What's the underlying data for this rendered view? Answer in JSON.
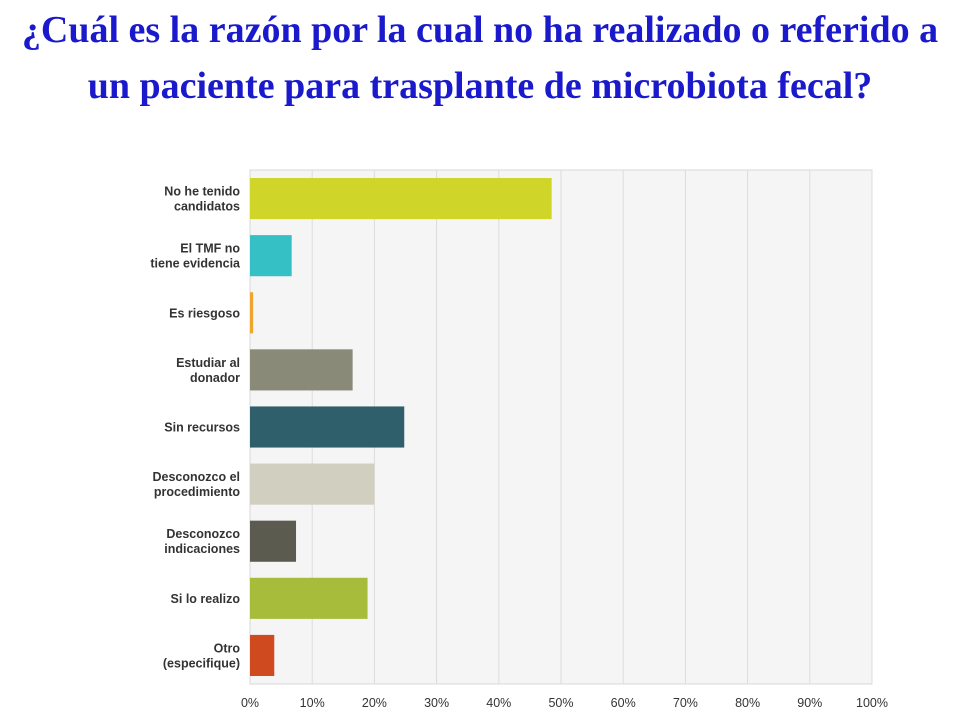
{
  "chart_data": {
    "type": "bar",
    "orientation": "horizontal",
    "title": "¿Cuál es la razón por la cual no ha realizado o referido a un paciente para trasplante de microbiota fecal?",
    "categories": [
      [
        "No he tenido",
        "candidatos"
      ],
      [
        "El TMF no",
        "tiene evidencia"
      ],
      [
        "Es riesgoso"
      ],
      [
        "Estudiar al",
        "donador"
      ],
      [
        "Sin recursos"
      ],
      [
        "Desconozco el",
        "procedimiento"
      ],
      [
        "Desconozco",
        "indicaciones"
      ],
      [
        "Si lo realizo"
      ],
      [
        "Otro",
        "(especifique)"
      ]
    ],
    "values": [
      48.5,
      6.7,
      0.5,
      16.5,
      24.8,
      20.0,
      7.4,
      18.9,
      3.9
    ],
    "value_unit": "%",
    "colors": [
      "#d0d52a",
      "#34c0c4",
      "#f0a62e",
      "#8a8a78",
      "#2e5f6b",
      "#d1cfc0",
      "#5b5b4f",
      "#a8bc3c",
      "#cf4a1e"
    ],
    "xlim": [
      0,
      100
    ],
    "x_ticks": [
      "0%",
      "10%",
      "20%",
      "30%",
      "40%",
      "50%",
      "60%",
      "70%",
      "80%",
      "90%",
      "100%"
    ],
    "grid": true,
    "legend": "none"
  }
}
